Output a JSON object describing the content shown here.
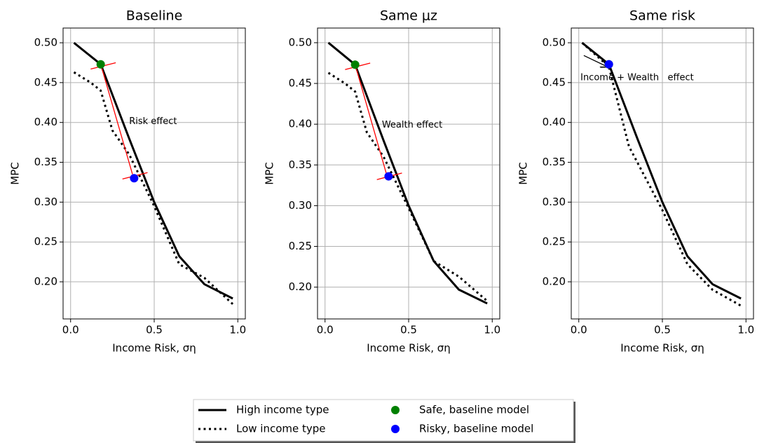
{
  "chart_data": [
    {
      "type": "line",
      "title": "Baseline",
      "xlabel": "Income Risk, ση",
      "ylabel": "MPC",
      "xlim": [
        -0.045,
        1.045
      ],
      "ylim": [
        0.1534,
        0.5185
      ],
      "xticks": [
        {
          "value": 0,
          "label": "0.0"
        },
        0.5,
        {
          "value": 1,
          "label": "1.0"
        }
      ],
      "yticks": [
        {
          "value": 0.2,
          "label": "0.20"
        },
        {
          "value": 0.25,
          "label": "0.25"
        },
        {
          "value": 0.3,
          "label": "0.30"
        },
        {
          "value": 0.35,
          "label": "0.35"
        },
        {
          "value": 0.4,
          "label": "0.40"
        },
        {
          "value": 0.45,
          "label": "0.45"
        },
        {
          "value": 0.5,
          "label": "0.50"
        }
      ],
      "grid": true,
      "legend": "below",
      "series": [
        {
          "type": "line",
          "name": "High income type",
          "color": "#000000",
          "dash": "solid",
          "x": [
            0.02,
            0.18,
            0.35,
            0.5,
            0.65,
            0.8,
            0.97
          ],
          "values": [
            0.5,
            0.473,
            0.38,
            0.3,
            0.232,
            0.197,
            0.179
          ]
        },
        {
          "type": "line",
          "name": "Low income type",
          "color": "#000000",
          "dash": "dotted",
          "x": [
            0.02,
            0.12,
            0.18,
            0.25,
            0.35,
            0.5,
            0.65,
            0.8,
            0.97
          ],
          "values": [
            0.463,
            0.45,
            0.44,
            0.39,
            0.36,
            0.295,
            0.222,
            0.205,
            0.172
          ]
        },
        {
          "type": "line",
          "color": "#ff0000",
          "dash": "thin",
          "x": [
            0.12,
            0.27
          ],
          "values": [
            0.467,
            0.475
          ]
        },
        {
          "type": "line",
          "color": "#ff0000",
          "dash": "thin",
          "x": [
            0.31,
            0.46
          ],
          "values": [
            0.329,
            0.337
          ]
        },
        {
          "type": "line",
          "color": "#ff0000",
          "dash": "thin",
          "x": [
            0.18,
            0.37
          ],
          "values": [
            0.473,
            0.335
          ]
        },
        {
          "type": "scatter",
          "name": "Safe, baseline model",
          "color": "#008000",
          "x": [
            0.18
          ],
          "values": [
            0.473
          ]
        },
        {
          "type": "scatter",
          "name": "Risky, baseline model",
          "color": "#0000ff",
          "x": [
            0.38
          ],
          "values": [
            0.33
          ]
        }
      ],
      "annotations": [
        {
          "text": "Risk effect",
          "x": 0.35,
          "y": 0.401
        }
      ]
    },
    {
      "type": "line",
      "title": "Same μz",
      "xlabel": "Income Risk, ση",
      "ylabel": "MPC",
      "xlim": [
        -0.045,
        1.045
      ],
      "ylim": [
        0.161,
        0.518
      ],
      "xticks": [
        {
          "value": 0,
          "label": "0.0"
        },
        0.5,
        {
          "value": 1,
          "label": "1.0"
        }
      ],
      "yticks": [
        {
          "value": 0.2,
          "label": "0.20"
        },
        {
          "value": 0.25,
          "label": "0.25"
        },
        {
          "value": 0.3,
          "label": "0.30"
        },
        {
          "value": 0.35,
          "label": "0.35"
        },
        {
          "value": 0.4,
          "label": "0.40"
        },
        {
          "value": 0.45,
          "label": "0.45"
        },
        {
          "value": 0.5,
          "label": "0.50"
        }
      ],
      "grid": true,
      "series": [
        {
          "type": "line",
          "color": "#000000",
          "dash": "solid",
          "x": [
            0.02,
            0.18,
            0.35,
            0.5,
            0.65,
            0.8,
            0.97
          ],
          "values": [
            0.5,
            0.473,
            0.38,
            0.3,
            0.232,
            0.197,
            0.18
          ]
        },
        {
          "type": "line",
          "color": "#000000",
          "dash": "dotted",
          "x": [
            0.02,
            0.12,
            0.18,
            0.25,
            0.35,
            0.5,
            0.65,
            0.8,
            0.97
          ],
          "values": [
            0.463,
            0.45,
            0.44,
            0.39,
            0.36,
            0.297,
            0.232,
            0.213,
            0.183
          ]
        },
        {
          "type": "line",
          "color": "#ff0000",
          "dash": "thin",
          "x": [
            0.12,
            0.27
          ],
          "values": [
            0.467,
            0.475
          ]
        },
        {
          "type": "line",
          "color": "#ff0000",
          "dash": "thin",
          "x": [
            0.31,
            0.46
          ],
          "values": [
            0.332,
            0.34
          ]
        },
        {
          "type": "line",
          "color": "#ff0000",
          "dash": "thin",
          "x": [
            0.18,
            0.37
          ],
          "values": [
            0.473,
            0.337
          ]
        },
        {
          "type": "scatter",
          "color": "#008000",
          "x": [
            0.18
          ],
          "values": [
            0.473
          ]
        },
        {
          "type": "scatter",
          "color": "#0000ff",
          "x": [
            0.38
          ],
          "values": [
            0.336
          ]
        }
      ],
      "annotations": [
        {
          "text": "Wealth effect",
          "x": 0.34,
          "y": 0.399
        }
      ]
    },
    {
      "type": "line",
      "title": "Same risk",
      "xlabel": "Income Risk, ση",
      "ylabel": "MPC",
      "xlim": [
        -0.045,
        1.045
      ],
      "ylim": [
        0.1534,
        0.5185
      ],
      "xticks": [
        {
          "value": 0,
          "label": "0.0"
        },
        0.5,
        {
          "value": 1,
          "label": "1.0"
        }
      ],
      "yticks": [
        {
          "value": 0.2,
          "label": "0.20"
        },
        {
          "value": 0.25,
          "label": "0.25"
        },
        {
          "value": 0.3,
          "label": "0.30"
        },
        {
          "value": 0.35,
          "label": "0.35"
        },
        {
          "value": 0.4,
          "label": "0.40"
        },
        {
          "value": 0.45,
          "label": "0.45"
        },
        {
          "value": 0.5,
          "label": "0.50"
        }
      ],
      "grid": true,
      "series": [
        {
          "type": "line",
          "color": "#000000",
          "dash": "solid",
          "x": [
            0.02,
            0.18,
            0.35,
            0.5,
            0.65,
            0.8,
            0.97
          ],
          "values": [
            0.5,
            0.473,
            0.38,
            0.3,
            0.232,
            0.197,
            0.179
          ]
        },
        {
          "type": "line",
          "color": "#000000",
          "dash": "dotted",
          "x": [
            0.02,
            0.18,
            0.3,
            0.5,
            0.65,
            0.8,
            0.97
          ],
          "values": [
            0.5,
            0.47,
            0.37,
            0.29,
            0.222,
            0.19,
            0.17
          ]
        },
        {
          "type": "arrow",
          "color": "#000000",
          "x": [
            0.03,
            0.17
          ],
          "values": [
            0.484,
            0.47
          ]
        },
        {
          "type": "scatter",
          "color": "#008000",
          "x": [
            0.18
          ],
          "values": [
            0.473
          ]
        },
        {
          "type": "scatter",
          "color": "#0000ff",
          "x": [
            0.18
          ],
          "values": [
            0.473
          ]
        }
      ],
      "annotations": [
        {
          "text": "Income + Wealth   effect",
          "x": 0.01,
          "y": 0.456
        }
      ]
    }
  ]
}
